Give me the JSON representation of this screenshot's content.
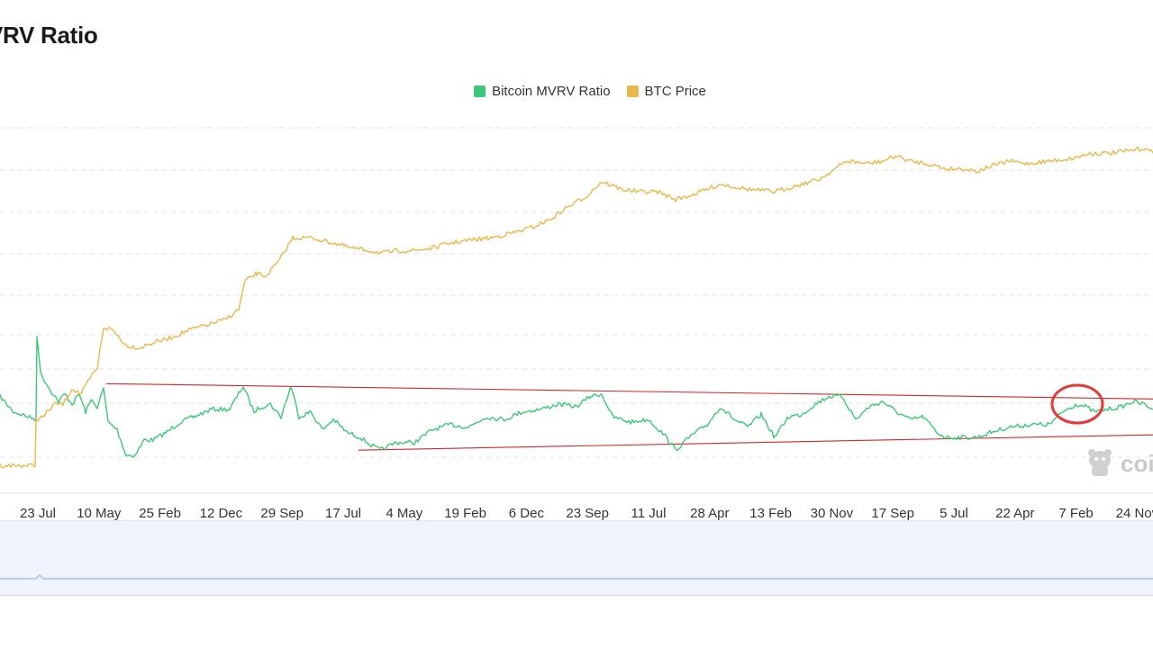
{
  "header": {
    "title": "VRV Ratio"
  },
  "chart_data": {
    "type": "line",
    "x_ticks": [
      "23 Jul",
      "10 May",
      "25 Feb",
      "12 Dec",
      "29 Sep",
      "17 Jul",
      "4 May",
      "19 Feb",
      "6 Dec",
      "23 Sep",
      "11 Jul",
      "28 Apr",
      "13 Feb",
      "30 Nov",
      "17 Sep",
      "5 Jul",
      "22 Apr",
      "7 Feb",
      "24 Nov"
    ],
    "series": [
      {
        "name": "Bitcoin MVRV Ratio",
        "color": "#3cc77a",
        "x": [
          0,
          15,
          40,
          41,
          45,
          55,
          65,
          72,
          80,
          88,
          95,
          102,
          108,
          115,
          120,
          130,
          140,
          150,
          160,
          170,
          185,
          200,
          215,
          235,
          255,
          270,
          282,
          290,
          300,
          312,
          323,
          332,
          345,
          358,
          370,
          385,
          400,
          412,
          422,
          440,
          460,
          480,
          500,
          520,
          540,
          560,
          580,
          600,
          620,
          640,
          655,
          668,
          680,
          700,
          720,
          740,
          750,
          765,
          785,
          800,
          815,
          830,
          845,
          860,
          875,
          890,
          905,
          920,
          935,
          950,
          965,
          980,
          995,
          1010,
          1025,
          1040,
          1050,
          1070,
          1085,
          1100,
          1120,
          1145,
          1165,
          1180,
          1195,
          1205,
          1215,
          1230,
          1245,
          1258,
          1270,
          1280
        ],
        "values": [
          1.75,
          1.45,
          1.3,
          2.95,
          2.2,
          1.9,
          1.65,
          1.8,
          1.6,
          1.8,
          1.45,
          1.7,
          1.55,
          1.9,
          1.25,
          1.1,
          0.6,
          0.6,
          0.9,
          0.9,
          1.05,
          1.25,
          1.35,
          1.5,
          1.5,
          1.95,
          1.45,
          1.55,
          1.6,
          1.35,
          1.95,
          1.35,
          1.45,
          1.1,
          1.3,
          1.05,
          0.95,
          0.8,
          0.7,
          0.85,
          0.85,
          1.1,
          1.2,
          1.15,
          1.35,
          1.3,
          1.45,
          1.5,
          1.6,
          1.55,
          1.75,
          1.8,
          1.35,
          1.25,
          1.3,
          0.95,
          0.7,
          0.95,
          1.2,
          1.55,
          1.3,
          1.15,
          1.4,
          0.95,
          1.35,
          1.4,
          1.6,
          1.75,
          1.75,
          1.3,
          1.55,
          1.65,
          1.45,
          1.3,
          1.35,
          1.05,
          0.95,
          0.95,
          0.95,
          1.05,
          1.15,
          1.2,
          1.2,
          1.45,
          1.6,
          1.55,
          1.45,
          1.5,
          1.55,
          1.65,
          1.6,
          1.5
        ]
      },
      {
        "name": "BTC Price",
        "color": "#e8b84a",
        "x": [
          0,
          39,
          40,
          48,
          60,
          70,
          80,
          90,
          100,
          108,
          115,
          125,
          140,
          155,
          170,
          190,
          210,
          230,
          250,
          265,
          272,
          285,
          295,
          310,
          325,
          345,
          370,
          390,
          410,
          425,
          440,
          460,
          480,
          500,
          520,
          545,
          570,
          590,
          610,
          630,
          650,
          668,
          690,
          710,
          730,
          750,
          770,
          800,
          830,
          860,
          880,
          910,
          940,
          965,
          980,
          995,
          1010,
          1030,
          1050,
          1070,
          1085,
          1100,
          1120,
          1140,
          1165,
          1190,
          1210,
          1230,
          1255,
          1270,
          1280
        ],
        "values": [
          0.4,
          0.4,
          1.3,
          1.35,
          1.6,
          1.6,
          1.9,
          1.8,
          2.1,
          2.3,
          3.1,
          3.05,
          2.75,
          2.7,
          2.8,
          2.9,
          3.05,
          3.15,
          3.25,
          3.45,
          4.0,
          4.15,
          4.1,
          4.4,
          4.85,
          4.85,
          4.75,
          4.65,
          4.6,
          4.55,
          4.6,
          4.6,
          4.65,
          4.75,
          4.8,
          4.85,
          4.95,
          5.05,
          5.2,
          5.45,
          5.65,
          5.95,
          5.8,
          5.75,
          5.75,
          5.6,
          5.7,
          5.9,
          5.8,
          5.75,
          5.85,
          6.0,
          6.35,
          6.3,
          6.35,
          6.45,
          6.35,
          6.3,
          6.2,
          6.2,
          6.15,
          6.25,
          6.35,
          6.3,
          6.35,
          6.4,
          6.5,
          6.5,
          6.55,
          6.6,
          6.5
        ]
      }
    ],
    "trendlines": [
      {
        "color": "#cf2a2a",
        "points": [
          [
            118,
            2.0
          ],
          [
            1280,
            1.7
          ]
        ]
      },
      {
        "color": "#cf2a2a",
        "points": [
          [
            398,
            0.7
          ],
          [
            1280,
            1.0
          ]
        ]
      }
    ],
    "highlight": {
      "color": "#e23b3b",
      "x": 1196,
      "value": 1.6
    },
    "ylim": [
      0,
      7
    ],
    "grid": "horizontal dashed",
    "legend": "top-center"
  },
  "watermark": {
    "text": "coin",
    "icon": "mascot-icon"
  }
}
